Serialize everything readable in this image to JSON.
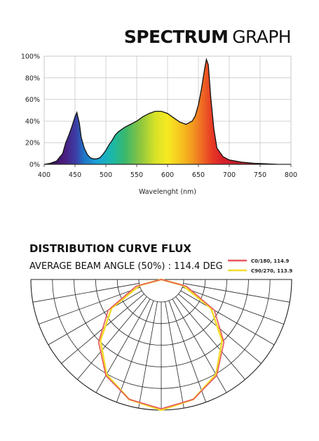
{
  "header": {
    "title_bold": "SPECTRUM",
    "title_light": "GRAPH"
  },
  "chart_data": [
    {
      "type": "area",
      "title": "SPECTRUM GRAPH",
      "xlabel": "Wavelenght (nm)",
      "ylabel": "",
      "xlim": [
        400,
        800
      ],
      "ylim": [
        0,
        100
      ],
      "xticks": [
        400,
        450,
        500,
        550,
        600,
        650,
        700,
        750,
        800
      ],
      "yticks": [
        0,
        20,
        40,
        60,
        80,
        100
      ],
      "ytick_labels": [
        "0%",
        "20%",
        "40%",
        "60%",
        "80%",
        "100%"
      ],
      "grid": true,
      "series": [
        {
          "x": [
            400,
            410,
            420,
            430,
            435,
            440,
            445,
            450,
            453,
            457,
            460,
            465,
            470,
            475,
            480,
            485,
            490,
            495,
            500,
            505,
            510,
            515,
            520,
            525,
            530,
            540,
            550,
            560,
            570,
            580,
            590,
            600,
            610,
            620,
            630,
            640,
            645,
            650,
            655,
            660,
            663,
            666,
            670,
            675,
            680,
            690,
            700,
            720,
            740,
            760,
            780,
            800
          ],
          "y": [
            0,
            1,
            3,
            10,
            20,
            27,
            35,
            44,
            48,
            38,
            25,
            15,
            9,
            6,
            5,
            5,
            6,
            9,
            13,
            18,
            22,
            27,
            30,
            32,
            34,
            37,
            40,
            44,
            47,
            49,
            49,
            47,
            43,
            39,
            37,
            40,
            45,
            55,
            70,
            88,
            97,
            92,
            62,
            33,
            15,
            7,
            4,
            2,
            1,
            0.5,
            0,
            0
          ]
        }
      ]
    },
    {
      "type": "polar",
      "title": "DISTRIBUTION CURVE FLUX",
      "subtitle": "AVERAGE BEAM ANGLE  (50%) : 114.4 DEG",
      "series": [
        {
          "name": "C0/180, 114.9",
          "color": "#e8565f",
          "angles_deg": [
            -90,
            -75,
            -60,
            -45,
            -30,
            -15,
            0,
            15,
            30,
            45,
            60,
            75,
            90
          ],
          "r": [
            0.0,
            0.2,
            0.47,
            0.68,
            0.85,
            0.95,
            0.99,
            0.95,
            0.85,
            0.68,
            0.47,
            0.2,
            0.0
          ]
        },
        {
          "name": "C90/270, 113.9",
          "color": "#f2dc2a",
          "angles_deg": [
            -90,
            -75,
            -60,
            -45,
            -30,
            -15,
            0,
            15,
            30,
            45,
            60,
            75,
            90
          ],
          "r": [
            0.0,
            0.17,
            0.44,
            0.66,
            0.84,
            0.95,
            1.0,
            0.95,
            0.84,
            0.66,
            0.44,
            0.17,
            0.0
          ]
        }
      ]
    }
  ]
}
